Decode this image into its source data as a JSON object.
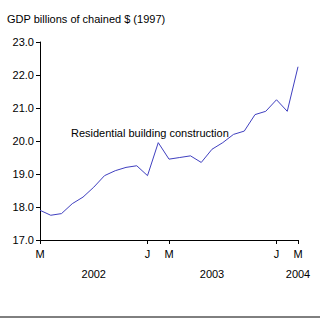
{
  "chart_data": {
    "type": "line",
    "y_label": "GDP billions of chained $ (1997)",
    "annotation": "Residential building construction",
    "categories": [
      "M",
      null,
      null,
      null,
      null,
      null,
      null,
      null,
      null,
      null,
      "J",
      null,
      "M",
      null,
      null,
      null,
      null,
      null,
      null,
      null,
      null,
      null,
      "J",
      null,
      "M"
    ],
    "x_group_labels": [
      null,
      null,
      null,
      null,
      null,
      "2002",
      null,
      null,
      null,
      null,
      null,
      null,
      null,
      null,
      null,
      null,
      "2003",
      null,
      null,
      null,
      null,
      null,
      null,
      null,
      "2004"
    ],
    "values": [
      17.9,
      17.75,
      17.8,
      18.1,
      18.3,
      18.6,
      18.95,
      19.1,
      19.2,
      19.25,
      18.95,
      19.95,
      19.45,
      19.5,
      19.55,
      19.35,
      19.75,
      19.95,
      20.2,
      20.3,
      20.8,
      20.9,
      21.25,
      20.9,
      22.25
    ],
    "color": "#4040c0",
    "ylim": [
      17,
      23
    ],
    "yticks": [
      {
        "value": 17,
        "label": "17.0"
      },
      {
        "value": 18,
        "label": "18.0"
      },
      {
        "value": 19,
        "label": "19.0"
      },
      {
        "value": 20,
        "label": "20.0"
      },
      {
        "value": 21,
        "label": "21.0"
      },
      {
        "value": 22,
        "label": "22.0"
      },
      {
        "value": 23,
        "label": "23.0"
      }
    ],
    "grid": false
  }
}
